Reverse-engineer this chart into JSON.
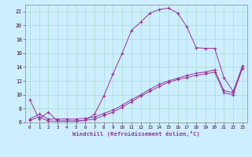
{
  "xlabel": "Windchill (Refroidissement éolien,°C)",
  "ylabel": "",
  "background_color": "#cceeff",
  "grid_color": "#aaddcc",
  "line_color": "#993399",
  "xlim": [
    -0.5,
    23.5
  ],
  "ylim": [
    6,
    23
  ],
  "xticks": [
    0,
    1,
    2,
    3,
    4,
    5,
    6,
    7,
    8,
    9,
    10,
    11,
    12,
    13,
    14,
    15,
    16,
    17,
    18,
    19,
    20,
    21,
    22,
    23
  ],
  "yticks": [
    6,
    8,
    10,
    12,
    14,
    16,
    18,
    20,
    22
  ],
  "series": [
    {
      "x": [
        0,
        1,
        2,
        3,
        4,
        5,
        6,
        7,
        8,
        9,
        10,
        11,
        12,
        13,
        14,
        15,
        16,
        17,
        18,
        19,
        20,
        21,
        22,
        23
      ],
      "y": [
        9.3,
        6.5,
        7.5,
        6.2,
        6.2,
        6.2,
        6.3,
        7.2,
        9.8,
        13.0,
        16.0,
        19.3,
        20.5,
        21.8,
        22.3,
        22.5,
        21.8,
        19.8,
        16.8,
        16.7,
        16.7,
        12.5,
        10.5,
        13.8
      ]
    },
    {
      "x": [
        0,
        1,
        2,
        3,
        4,
        5,
        6,
        7,
        8,
        9,
        10,
        11,
        12,
        13,
        14,
        15,
        16,
        17,
        18,
        19,
        20,
        21,
        22,
        23
      ],
      "y": [
        6.3,
        6.8,
        6.2,
        6.2,
        6.2,
        6.2,
        6.3,
        6.5,
        7.0,
        7.5,
        8.2,
        9.0,
        9.8,
        10.5,
        11.2,
        11.8,
        12.2,
        12.5,
        12.8,
        13.0,
        13.3,
        10.3,
        10.0,
        13.8
      ]
    },
    {
      "x": [
        0,
        1,
        2,
        3,
        4,
        5,
        6,
        7,
        8,
        9,
        10,
        11,
        12,
        13,
        14,
        15,
        16,
        17,
        18,
        19,
        20,
        21,
        22,
        23
      ],
      "y": [
        6.5,
        7.2,
        6.5,
        6.5,
        6.5,
        6.5,
        6.6,
        6.8,
        7.3,
        7.8,
        8.5,
        9.3,
        10.0,
        10.8,
        11.5,
        12.0,
        12.4,
        12.8,
        13.1,
        13.3,
        13.6,
        10.6,
        10.3,
        14.2
      ]
    }
  ]
}
